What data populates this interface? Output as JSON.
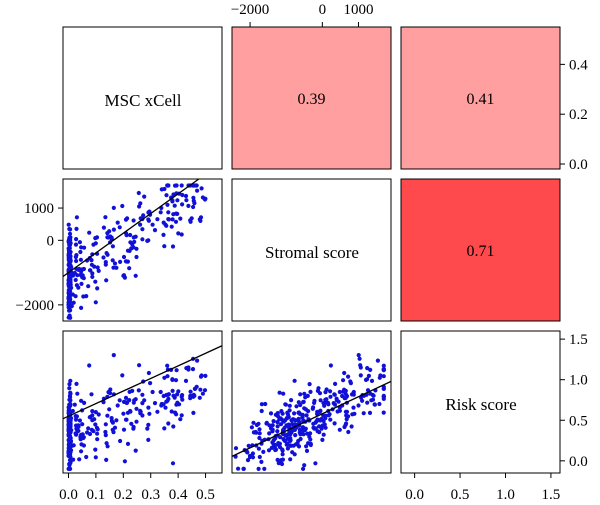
{
  "chart_data": {
    "type": "scatter",
    "variables": [
      "MSC xCell",
      "Stromal score",
      "Risk score"
    ],
    "correlations": [
      {
        "row": 0,
        "col": 1,
        "value": 0.39,
        "label": "0.39",
        "color": "#ff9f9f"
      },
      {
        "row": 0,
        "col": 2,
        "value": 0.41,
        "label": "0.41",
        "color": "#ff9f9f"
      },
      {
        "row": 1,
        "col": 2,
        "value": 0.71,
        "label": "0.71",
        "color": "#ff4a4d"
      }
    ],
    "axes": {
      "msc": {
        "range": [
          -0.02,
          0.56
        ],
        "ticks": [
          0.0,
          0.1,
          0.2,
          0.3,
          0.4,
          0.5
        ],
        "tick_labels": [
          "0.0",
          "0.1",
          "0.2",
          "0.3",
          "0.4",
          "0.5"
        ]
      },
      "stromal": {
        "range": [
          -2500,
          1900
        ],
        "ticks": [
          -2000,
          0,
          1000
        ],
        "tick_labels": [
          "−2000",
          "0",
          "1000"
        ]
      },
      "risk": {
        "range": [
          -0.15,
          1.6
        ],
        "ticks": [
          0.0,
          0.5,
          1.0,
          1.5
        ],
        "tick_labels": [
          "0.0",
          "0.5",
          "1.0",
          "1.5"
        ]
      },
      "corr_scale": {
        "range": [
          -0.02,
          0.55
        ],
        "ticks": [
          0.0,
          0.2,
          0.4
        ],
        "tick_labels": [
          "0.0",
          "0.2",
          "0.4"
        ]
      }
    },
    "panels": [
      {
        "row": 1,
        "col": 0,
        "x": "MSC xCell",
        "y": "Stromal score",
        "fit": {
          "intercept": -1000,
          "slope": 6100
        }
      },
      {
        "row": 2,
        "col": 0,
        "x": "MSC xCell",
        "y": "Risk score",
        "fit": {
          "intercept": 0.55,
          "slope": 1.55
        }
      },
      {
        "row": 2,
        "col": 1,
        "x": "Stromal score",
        "y": "Risk score",
        "fit": {
          "intercept": 0.58,
          "slope": 0.00021
        }
      }
    ],
    "point_color": "#1010d8",
    "line_color": "#000000"
  }
}
